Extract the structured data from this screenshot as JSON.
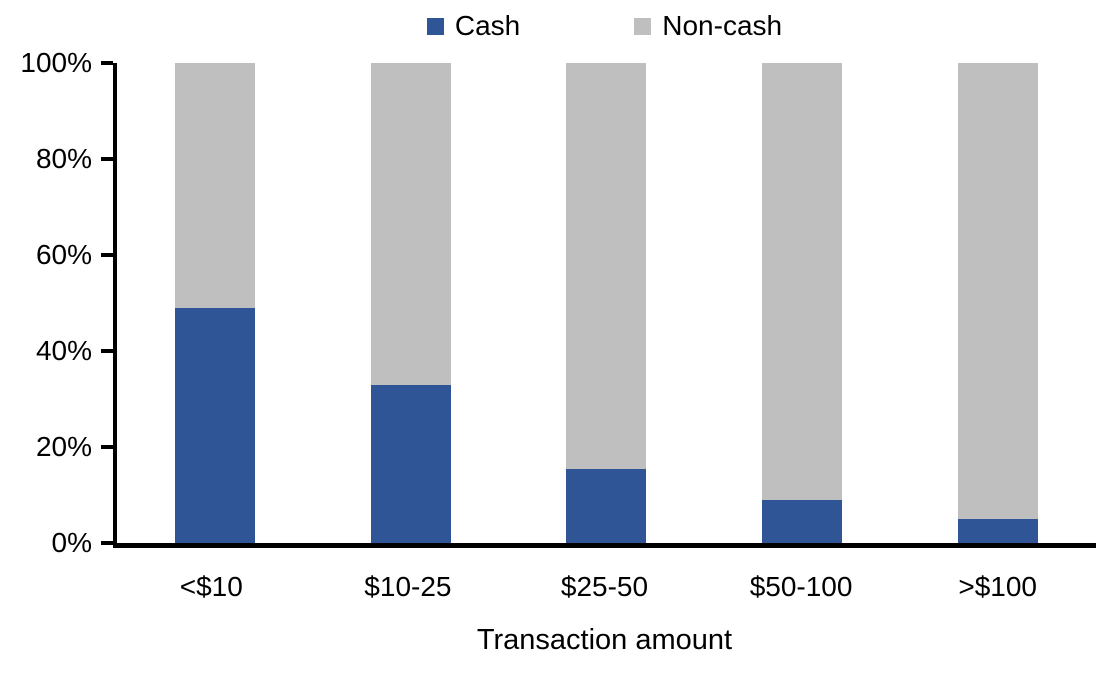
{
  "chart_data": {
    "type": "bar",
    "stacked": true,
    "orientation": "vertical",
    "title": "",
    "xlabel": "Transaction amount",
    "ylabel": "",
    "ylim": [
      0,
      100
    ],
    "grid": false,
    "legend_position": "top-center",
    "categories": [
      "<$10",
      "$10-25",
      "$25-50",
      "$50-100",
      ">$100"
    ],
    "series": [
      {
        "name": "Cash",
        "color": "#2F5597",
        "values": [
          49,
          33,
          15.5,
          9,
          5
        ]
      },
      {
        "name": "Non-cash",
        "color": "#BFBFBF",
        "values": [
          51,
          67,
          84.5,
          91,
          95
        ]
      }
    ],
    "yticks": [
      {
        "value": 0,
        "label": "0%"
      },
      {
        "value": 20,
        "label": "20%"
      },
      {
        "value": 40,
        "label": "40%"
      },
      {
        "value": 60,
        "label": "60%"
      },
      {
        "value": 80,
        "label": "80%"
      },
      {
        "value": 100,
        "label": "100%"
      }
    ],
    "axis_color": "#000000",
    "text_color": "#000000"
  }
}
